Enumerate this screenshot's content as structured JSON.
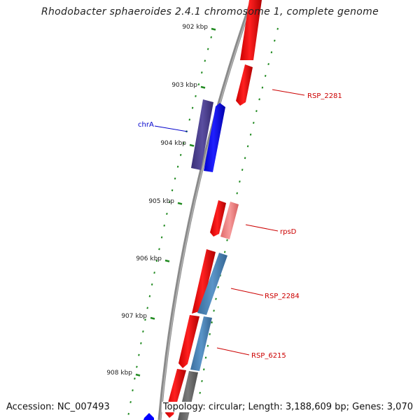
{
  "title": "Rhodobacter sphaeroides 2.4.1 chromosome 1, complete genome",
  "footer": {
    "accession": "Accession: NC_007493",
    "summary": "Topology: circular; Length: 3,188,609 bp; Genes: 3,070"
  },
  "colors": {
    "backbone": "#888888",
    "tick": "#228b22",
    "forward_gene": "#ff0000",
    "reverse_gene": "#0000ff",
    "rna_gene": "#4682b4",
    "pseudo_gene": "#483d8b",
    "light_gene": "#f08080",
    "grey_gene": "#696969",
    "label_red": "#cc0000",
    "label_blue": "#0000cc"
  },
  "ticks": [
    {
      "label": "902 kbp"
    },
    {
      "label": "903 kbp"
    },
    {
      "label": "904 kbp"
    },
    {
      "label": "905 kbp"
    },
    {
      "label": "906 kbp"
    },
    {
      "label": "907 kbp"
    },
    {
      "label": "908 kbp"
    }
  ],
  "gene_labels": [
    {
      "name": "RSP_2281",
      "color": "#cc0000"
    },
    {
      "name": "chrA",
      "color": "#0000cc"
    },
    {
      "name": "rpsD",
      "color": "#cc0000"
    },
    {
      "name": "RSP_2284",
      "color": "#cc0000"
    },
    {
      "name": "RSP_6215",
      "color": "#cc0000"
    }
  ]
}
